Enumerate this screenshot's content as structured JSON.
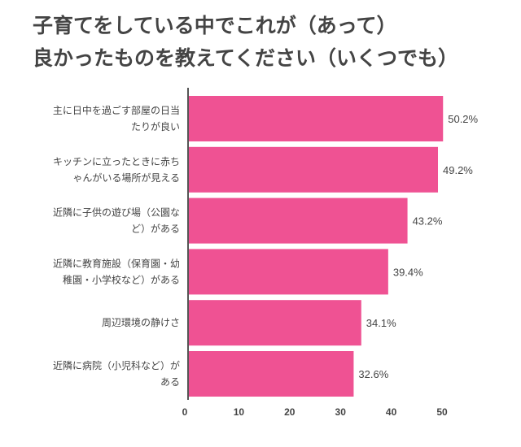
{
  "chart_data": {
    "type": "bar",
    "orientation": "horizontal",
    "title": [
      "子育てをしている中でこれが（あって）",
      "良かったものを教えてください（いくつでも）"
    ],
    "categories": [
      [
        "主に日中を過ごす部屋の日当",
        "たりが良い"
      ],
      [
        "キッチンに立ったときに赤ち",
        "ゃんがいる場所が見える"
      ],
      [
        "近隣に子供の遊び場（公園な",
        "ど）がある"
      ],
      [
        "近隣に教育施設（保育園・幼",
        "稚園・小学校など）がある"
      ],
      [
        "周辺環境の静けさ"
      ],
      [
        "近隣に病院（小児科など）が",
        "ある"
      ]
    ],
    "values": [
      50.2,
      49.2,
      43.2,
      39.4,
      34.1,
      32.6
    ],
    "data_labels": [
      "50.2%",
      "49.2%",
      "43.2%",
      "39.4%",
      "34.1%",
      "32.6%"
    ],
    "xticks": [
      0,
      10,
      20,
      30,
      40,
      50
    ],
    "xlim": [
      0,
      50
    ],
    "grid": false,
    "bar_color": "#ef5293"
  }
}
